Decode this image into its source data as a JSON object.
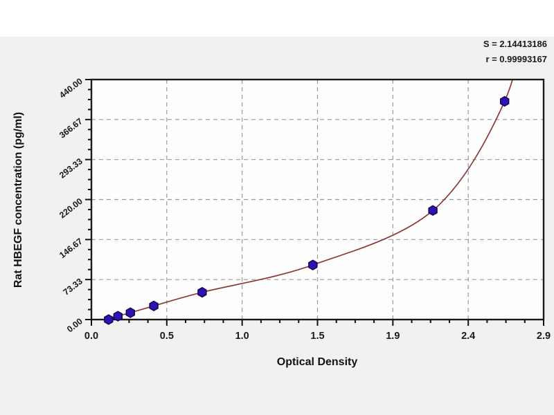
{
  "page": {
    "background_color": "#f1f1ef",
    "top_strip_color": "#ffffff"
  },
  "stats": {
    "s_line": "S = 2.14413186",
    "r_line": "r = 0.99993167"
  },
  "chart_data": {
    "type": "scatter",
    "title": "",
    "xlabel": "Optical Density",
    "ylabel": "Rat HBEGF concentration (pg/ml)",
    "xlim": [
      0,
      2.9
    ],
    "ylim": [
      0,
      440
    ],
    "x_tick_labels": [
      "0.0",
      "0.5",
      "1.0",
      "1.5",
      "1.9",
      "2.4",
      "2.9"
    ],
    "x_tick_values": [
      0,
      0.4833,
      0.9667,
      1.45,
      1.9333,
      2.4167,
      2.9
    ],
    "y_tick_labels": [
      "0.00",
      "73.33",
      "146.67",
      "220.00",
      "293.33",
      "366.67",
      "440.00"
    ],
    "y_tick_values": [
      0,
      73.33,
      146.67,
      220.0,
      293.33,
      366.67,
      440.0
    ],
    "minor_ticks_per_interval": 3,
    "grid": "dashed",
    "legend": "none",
    "series": [
      {
        "name": "standard-points",
        "type": "scatter",
        "marker": "hexagon",
        "points": [
          [
            0.11,
            0
          ],
          [
            0.17,
            6.25
          ],
          [
            0.25,
            12.5
          ],
          [
            0.4,
            25
          ],
          [
            0.71,
            50
          ],
          [
            1.42,
            100
          ],
          [
            2.19,
            200
          ],
          [
            2.65,
            400
          ]
        ]
      },
      {
        "name": "fitted-standard-curve",
        "type": "line",
        "through_points": "standard-points"
      }
    ],
    "fit": {
      "S": 2.14413186,
      "r": 0.99993167
    }
  },
  "colors": {
    "marker_fill": "#2f12b5",
    "marker_stroke": "#150850",
    "curve": "#8b3a3a",
    "grid": "#9a9a9a",
    "frame": "#1a1a1a",
    "tick": "#111111",
    "tick_text": "#1a1a1a",
    "plot_bg": "#fdfdfd"
  }
}
